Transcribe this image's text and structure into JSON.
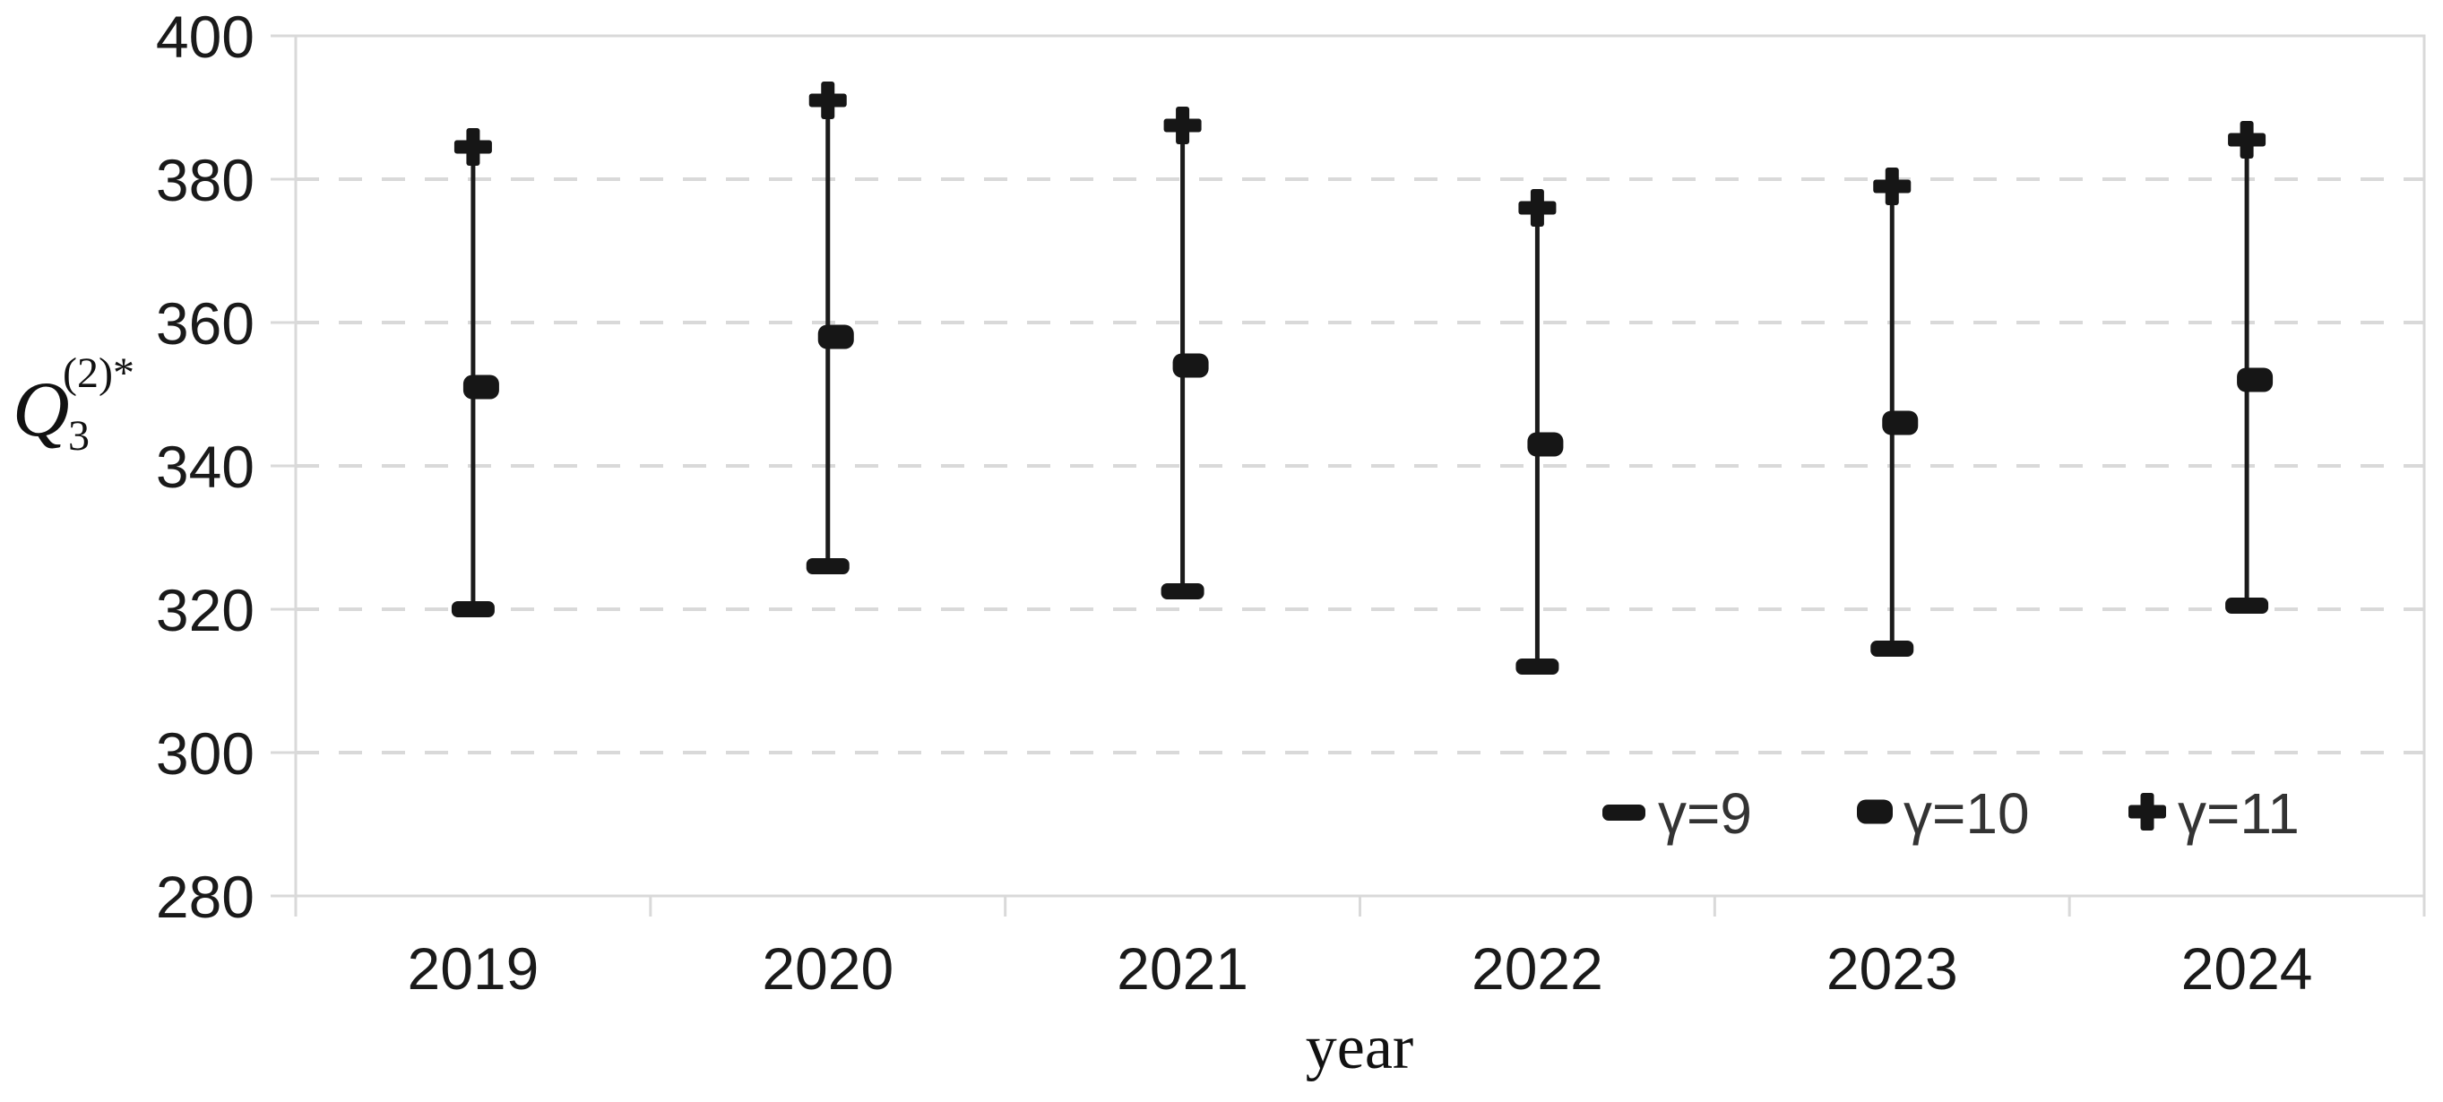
{
  "chart_data": {
    "type": "scatter",
    "title": "",
    "categories": [
      "2019",
      "2020",
      "2021",
      "2022",
      "2023",
      "2024"
    ],
    "series": [
      {
        "name": "γ=9",
        "marker": "dash",
        "values": [
          320,
          326,
          322.5,
          312,
          314.5,
          320.5
        ]
      },
      {
        "name": "γ=10",
        "marker": "dot",
        "values": [
          351,
          358,
          354,
          343,
          346,
          352
        ]
      },
      {
        "name": "γ=11",
        "marker": "plus",
        "values": [
          384.5,
          391,
          387.5,
          376,
          379,
          385.5
        ]
      }
    ],
    "connector": "vertical high-low line from γ=9 marker up to γ=11 marker at each year",
    "xlabel": "year",
    "ylabel": "Q3(2)*",
    "ylabel_parts": {
      "base": "Q",
      "superscript": "(2)*",
      "subscript": "3"
    },
    "ylim": [
      280,
      400
    ],
    "yticks": [
      280,
      300,
      320,
      340,
      360,
      380,
      400
    ],
    "grid": "horizontal dashed gridlines at 300-380, solid light border around plot area",
    "legend_position": "inside bottom-right",
    "colors": {
      "marker": "#161616",
      "connector_line": "#1b1b1b",
      "grid": "#d9d9d9",
      "tick_text": "#1a1a1a",
      "legend_text": "#333333",
      "background": "#ffffff"
    }
  }
}
